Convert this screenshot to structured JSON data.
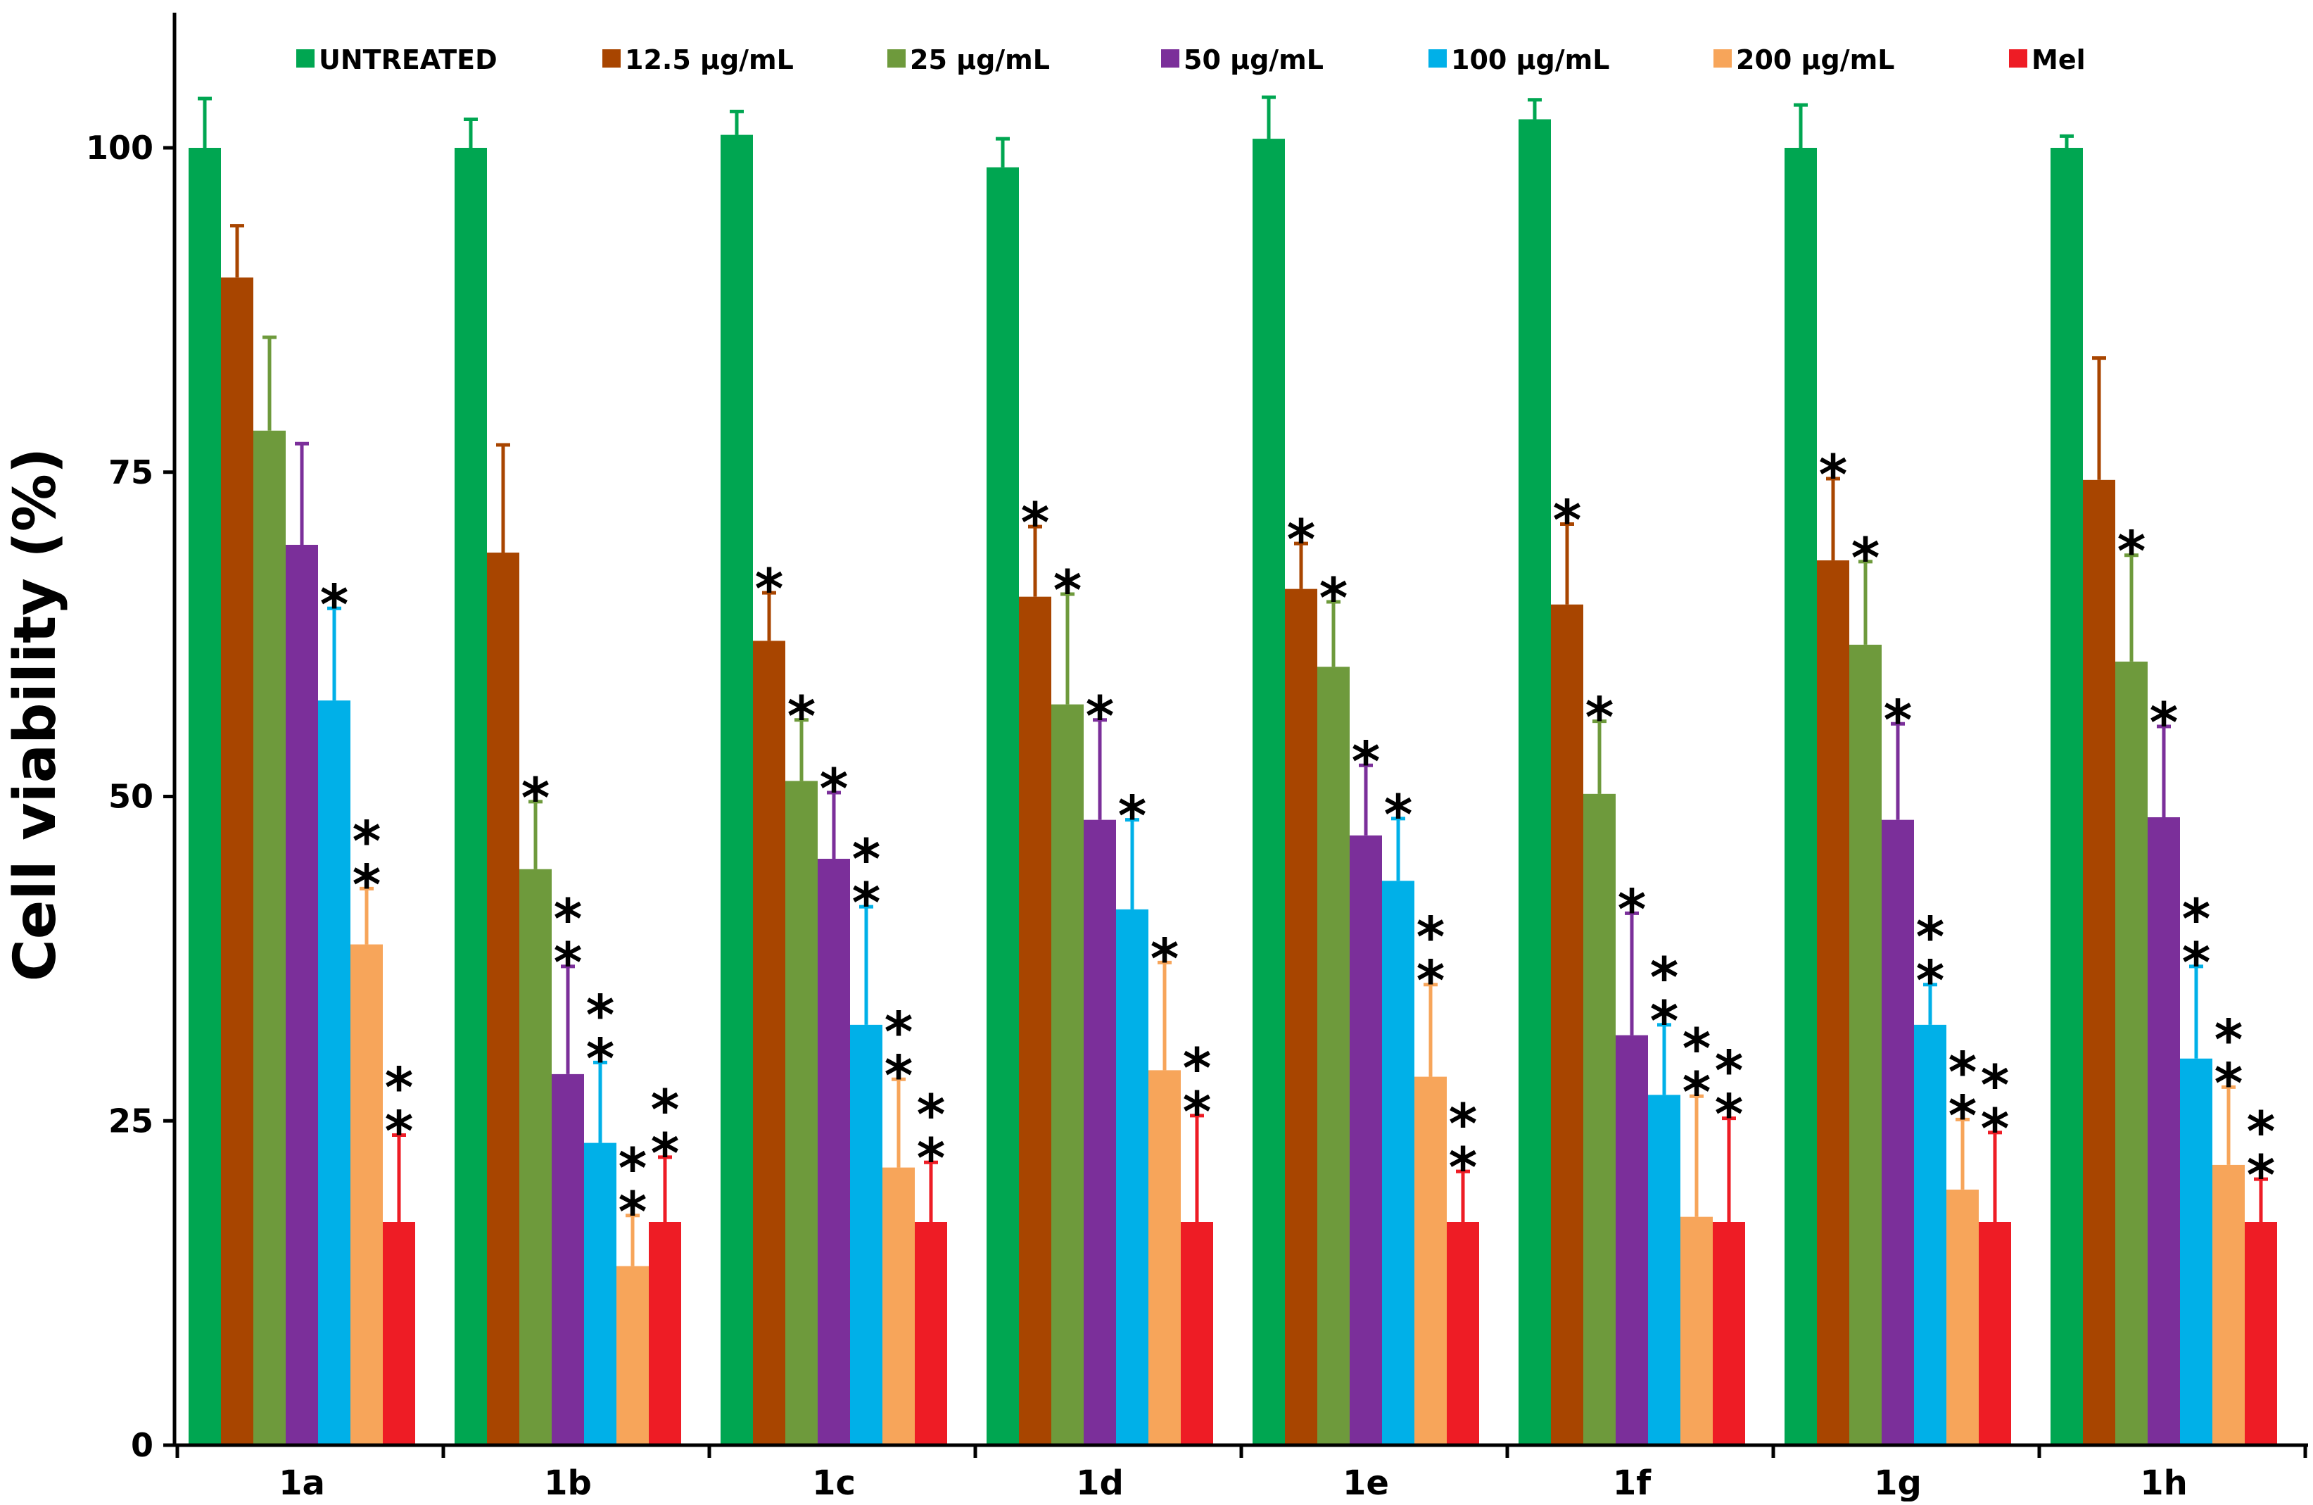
{
  "chart_data": {
    "type": "bar",
    "title": "",
    "xlabel": "",
    "ylabel": "Cell viability (%)",
    "ylim": [
      0,
      110
    ],
    "yticks": [
      "0",
      "25",
      "50",
      "75",
      "100"
    ],
    "grid": false,
    "legend_position": "top",
    "categories": [
      "1a",
      "1b",
      "1c",
      "1d",
      "1e",
      "1f",
      "1g",
      "1h"
    ],
    "series": [
      {
        "name": "UNTREATED",
        "color": "#00a651",
        "values": [
          100,
          100,
          101,
          98.5,
          100.7,
          102.2,
          100,
          100
        ],
        "errors": [
          3.8,
          2.2,
          1.8,
          2.2,
          3.2,
          1.5,
          3.3,
          0.9
        ],
        "stars": [
          0,
          0,
          0,
          0,
          0,
          0,
          0,
          0
        ]
      },
      {
        "name": "12.5 µg/mL",
        "color": "#a84500",
        "values": [
          90,
          68.8,
          62,
          65.4,
          66,
          64.8,
          68.2,
          74.4
        ],
        "errors": [
          4,
          8.3,
          3.7,
          5.4,
          3.5,
          6.2,
          6.3,
          9.4
        ],
        "stars": [
          0,
          0,
          1,
          1,
          1,
          1,
          1,
          0
        ]
      },
      {
        "name": "25 µg/mL",
        "color": "#6e9a3c",
        "values": [
          78.2,
          44.4,
          51.2,
          57.1,
          60,
          50.2,
          61.7,
          60.4
        ],
        "errors": [
          7.2,
          5.2,
          4.7,
          8.5,
          5,
          5.6,
          6.4,
          8.2
        ],
        "stars": [
          0,
          1,
          1,
          1,
          1,
          1,
          1,
          1
        ]
      },
      {
        "name": "50 µg/mL",
        "color": "#7b2f9a",
        "values": [
          69.4,
          28.6,
          45.2,
          48.2,
          47,
          31.6,
          48.2,
          48.4
        ],
        "errors": [
          7.8,
          8.3,
          5.1,
          7.7,
          5.4,
          9.4,
          7.4,
          7
        ],
        "stars": [
          0,
          2,
          1,
          1,
          1,
          1,
          1,
          1
        ]
      },
      {
        "name": "100 µg/mL",
        "color": "#00b0e8",
        "values": [
          57.4,
          23.3,
          32.4,
          41.3,
          43.5,
          27,
          32.4,
          29.8
        ],
        "errors": [
          7.1,
          6.2,
          9.1,
          6.9,
          4.8,
          5.4,
          3.1,
          7.1
        ],
        "stars": [
          1,
          2,
          2,
          1,
          1,
          2,
          2,
          2
        ]
      },
      {
        "name": "200 µg/mL",
        "color": "#f7a55a",
        "values": [
          38.6,
          13.8,
          21.4,
          28.9,
          28.4,
          17.6,
          19.7,
          21.6
        ],
        "errors": [
          4.3,
          3.9,
          6.8,
          8.3,
          7.1,
          9.3,
          5.4,
          6
        ],
        "stars": [
          2,
          2,
          2,
          1,
          2,
          2,
          2,
          2
        ]
      },
      {
        "name": "Mel",
        "color": "#ee1c25",
        "values": [
          17.2,
          17.2,
          17.2,
          17.2,
          17.2,
          17.2,
          17.2,
          17.2
        ],
        "errors": [
          6.7,
          5,
          4.6,
          8.2,
          3.9,
          8,
          6.9,
          3.3
        ],
        "stars": [
          2,
          2,
          2,
          2,
          2,
          2,
          2,
          2
        ]
      }
    ]
  }
}
